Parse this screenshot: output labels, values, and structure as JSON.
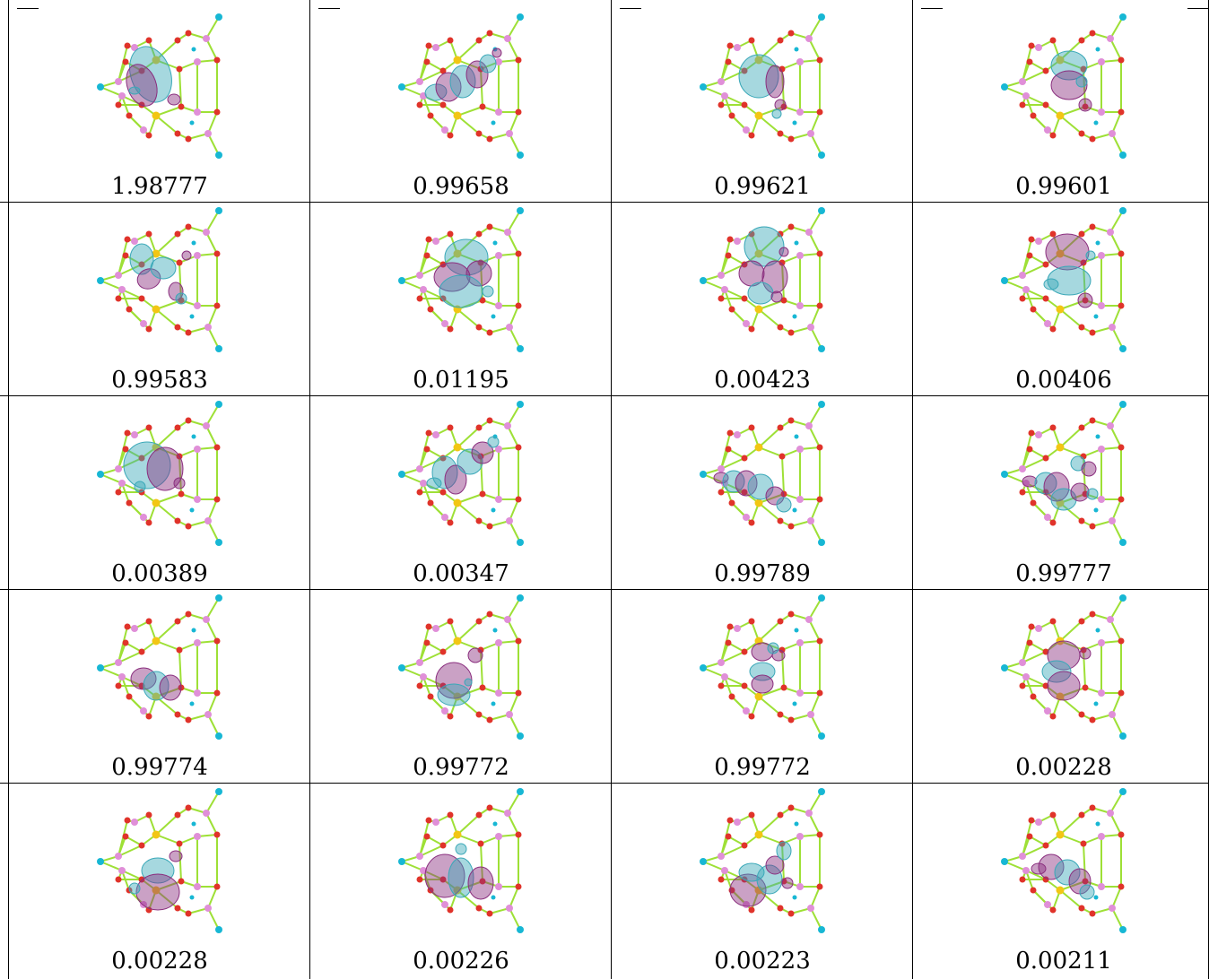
{
  "table": {
    "columns": 4,
    "rows": 5,
    "cells": [
      {
        "occupation": "1.98777",
        "orbital": [
          [
            -12,
            -14,
            22,
            32,
            "t",
            -20
          ],
          [
            -22,
            -2,
            16,
            24,
            "p",
            -20
          ],
          [
            14,
            14,
            7,
            6,
            "p",
            0
          ],
          [
            -30,
            4,
            6,
            4,
            "t",
            0
          ]
        ]
      },
      {
        "occupation": "0.99658",
        "orbital": [
          [
            -30,
            6,
            12,
            9,
            "t",
            -10
          ],
          [
            -16,
            0,
            14,
            16,
            "p",
            0
          ],
          [
            0,
            -6,
            14,
            18,
            "t",
            0
          ],
          [
            16,
            -14,
            12,
            15,
            "p",
            0
          ],
          [
            28,
            -26,
            9,
            10,
            "t",
            0
          ],
          [
            38,
            -38,
            5,
            5,
            "p",
            0
          ]
        ]
      },
      {
        "occupation": "0.99621",
        "orbital": [
          [
            -6,
            -12,
            22,
            24,
            "t",
            0
          ],
          [
            12,
            -6,
            10,
            18,
            "p",
            0
          ],
          [
            18,
            20,
            6,
            6,
            "p",
            0
          ],
          [
            14,
            30,
            5,
            5,
            "t",
            0
          ]
        ]
      },
      {
        "occupation": "0.99601",
        "orbital": [
          [
            4,
            -24,
            20,
            16,
            "t",
            0
          ],
          [
            4,
            -2,
            20,
            16,
            "p",
            0
          ],
          [
            22,
            20,
            7,
            7,
            "p",
            0
          ],
          [
            18,
            -6,
            6,
            6,
            "t",
            0
          ]
        ]
      },
      {
        "occupation": "0.99583",
        "orbital": [
          [
            -22,
            -24,
            13,
            17,
            "t",
            0
          ],
          [
            -14,
            -2,
            13,
            11,
            "p",
            -20
          ],
          [
            2,
            -14,
            14,
            12,
            "t",
            0
          ],
          [
            16,
            12,
            8,
            10,
            "p",
            0
          ],
          [
            22,
            20,
            6,
            6,
            "t",
            0
          ],
          [
            28,
            -28,
            5,
            5,
            "p",
            0
          ]
        ]
      },
      {
        "occupation": "0.01195",
        "orbital": [
          [
            4,
            -26,
            24,
            20,
            "t",
            0
          ],
          [
            -12,
            -4,
            20,
            16,
            "p",
            0
          ],
          [
            18,
            -8,
            14,
            14,
            "p",
            0
          ],
          [
            -2,
            12,
            24,
            18,
            "t",
            0
          ],
          [
            28,
            12,
            6,
            6,
            "t",
            0
          ]
        ]
      },
      {
        "occupation": "0.00423",
        "orbital": [
          [
            0,
            -38,
            22,
            22,
            "t",
            0
          ],
          [
            -14,
            -8,
            14,
            14,
            "p",
            0
          ],
          [
            12,
            -4,
            14,
            18,
            "p",
            0
          ],
          [
            -4,
            14,
            14,
            12,
            "t",
            0
          ],
          [
            14,
            18,
            6,
            6,
            "p",
            0
          ],
          [
            22,
            -32,
            5,
            5,
            "p",
            0
          ]
        ]
      },
      {
        "occupation": "0.00406",
        "orbital": [
          [
            2,
            -32,
            24,
            20,
            "p",
            0
          ],
          [
            4,
            0,
            24,
            16,
            "t",
            0
          ],
          [
            -16,
            4,
            8,
            6,
            "t",
            0
          ],
          [
            22,
            22,
            8,
            8,
            "p",
            0
          ],
          [
            28,
            -28,
            5,
            5,
            "t",
            0
          ]
        ]
      },
      {
        "occupation": "0.00389",
        "orbital": [
          [
            -16,
            -10,
            26,
            26,
            "t",
            0
          ],
          [
            4,
            -6,
            20,
            24,
            "p",
            0
          ],
          [
            20,
            10,
            6,
            6,
            "p",
            0
          ],
          [
            -24,
            14,
            6,
            6,
            "t",
            0
          ]
        ]
      },
      {
        "occupation": "0.00347",
        "orbital": [
          [
            -32,
            10,
            8,
            6,
            "t",
            0
          ],
          [
            -20,
            -2,
            14,
            18,
            "t",
            0
          ],
          [
            -8,
            6,
            12,
            16,
            "p",
            0
          ],
          [
            8,
            -14,
            14,
            14,
            "t",
            0
          ],
          [
            22,
            -24,
            12,
            12,
            "p",
            0
          ],
          [
            34,
            -36,
            6,
            6,
            "t",
            0
          ]
        ]
      },
      {
        "occupation": "0.99789",
        "orbital": [
          [
            -48,
            4,
            8,
            6,
            "p",
            0
          ],
          [
            -34,
            8,
            12,
            12,
            "t",
            0
          ],
          [
            -20,
            10,
            12,
            14,
            "p",
            0
          ],
          [
            -4,
            14,
            14,
            14,
            "t",
            0
          ],
          [
            12,
            24,
            10,
            10,
            "p",
            0
          ],
          [
            22,
            34,
            8,
            8,
            "t",
            0
          ]
        ]
      },
      {
        "occupation": "0.99777",
        "orbital": [
          [
            -40,
            8,
            8,
            6,
            "p",
            0
          ],
          [
            -22,
            10,
            12,
            12,
            "t",
            0
          ],
          [
            -10,
            14,
            14,
            16,
            "p",
            0
          ],
          [
            -2,
            28,
            14,
            12,
            "t",
            0
          ],
          [
            16,
            20,
            10,
            10,
            "p",
            0
          ],
          [
            14,
            -12,
            8,
            8,
            "t",
            0
          ],
          [
            26,
            -6,
            8,
            8,
            "p",
            0
          ],
          [
            30,
            22,
            6,
            6,
            "t",
            0
          ]
        ]
      },
      {
        "occupation": "0.99774",
        "orbital": [
          [
            -20,
            12,
            14,
            12,
            "p",
            0
          ],
          [
            -6,
            20,
            14,
            16,
            "t",
            0
          ],
          [
            10,
            22,
            12,
            14,
            "p",
            0
          ]
        ]
      },
      {
        "occupation": "0.99772",
        "orbital": [
          [
            -10,
            14,
            20,
            20,
            "p",
            0
          ],
          [
            -10,
            30,
            18,
            12,
            "t",
            0
          ],
          [
            14,
            -14,
            8,
            8,
            "p",
            0
          ],
          [
            6,
            16,
            4,
            4,
            "t",
            0
          ]
        ]
      },
      {
        "occupation": "0.99772",
        "orbital": [
          [
            -2,
            -18,
            12,
            10,
            "p",
            0
          ],
          [
            -2,
            4,
            14,
            10,
            "t",
            0
          ],
          [
            -2,
            18,
            12,
            10,
            "p",
            0
          ],
          [
            16,
            -14,
            7,
            6,
            "p",
            0
          ],
          [
            10,
            -22,
            6,
            6,
            "t",
            0
          ]
        ]
      },
      {
        "occupation": "0.00228",
        "orbital": [
          [
            -2,
            -14,
            18,
            16,
            "p",
            0
          ],
          [
            -10,
            4,
            16,
            12,
            "t",
            0
          ],
          [
            -2,
            20,
            18,
            16,
            "p",
            0
          ],
          [
            22,
            -16,
            6,
            6,
            "p",
            0
          ]
        ]
      },
      {
        "occupation": "0.00228",
        "orbital": [
          [
            -4,
            10,
            18,
            14,
            "t",
            0
          ],
          [
            -4,
            34,
            24,
            20,
            "p",
            0
          ],
          [
            16,
            -6,
            7,
            6,
            "p",
            0
          ],
          [
            -30,
            30,
            6,
            6,
            "t",
            0
          ]
        ]
      },
      {
        "occupation": "0.00226",
        "orbital": [
          [
            -20,
            16,
            22,
            24,
            "p",
            0
          ],
          [
            -2,
            18,
            14,
            22,
            "t",
            0
          ],
          [
            20,
            24,
            14,
            18,
            "p",
            0
          ],
          [
            -2,
            -14,
            6,
            6,
            "t",
            0
          ]
        ]
      },
      {
        "occupation": "0.00223",
        "orbital": [
          [
            -18,
            32,
            20,
            18,
            "p",
            0
          ],
          [
            -14,
            12,
            14,
            10,
            "t",
            0
          ],
          [
            6,
            20,
            14,
            16,
            "t",
            0
          ],
          [
            12,
            4,
            10,
            10,
            "p",
            0
          ],
          [
            22,
            -12,
            8,
            10,
            "t",
            0
          ],
          [
            26,
            24,
            6,
            6,
            "p",
            0
          ]
        ]
      },
      {
        "occupation": "0.00211",
        "orbital": [
          [
            -30,
            8,
            8,
            6,
            "p",
            0
          ],
          [
            -16,
            6,
            14,
            14,
            "p",
            0
          ],
          [
            2,
            12,
            14,
            14,
            "t",
            0
          ],
          [
            16,
            22,
            12,
            14,
            "p",
            0
          ],
          [
            24,
            34,
            8,
            8,
            "t",
            0
          ]
        ]
      }
    ]
  },
  "colors": {
    "bond": "#9ee036",
    "oxygen": "#e0332a",
    "pink_atom": "#e08fd8",
    "yellow_atom": "#f2c614",
    "terminal_atom": "#17b7d4",
    "lobe_teal": "#3aa8b8",
    "lobe_purple": "#8a2f7e",
    "lines": "#000000"
  }
}
